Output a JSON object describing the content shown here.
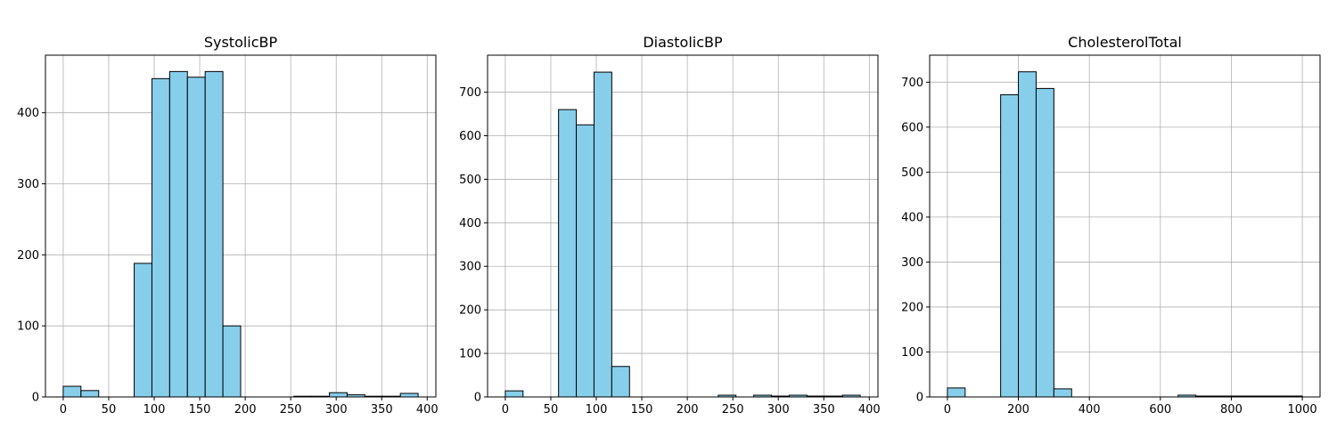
{
  "chart_data": [
    {
      "type": "bar",
      "title": "SystolicBP",
      "xlabel": "",
      "ylabel": "",
      "xlim": [
        -19.5,
        409.5
      ],
      "ylim": [
        0,
        481
      ],
      "xticks": [
        0,
        50,
        100,
        150,
        200,
        250,
        300,
        350,
        400
      ],
      "yticks": [
        0,
        100,
        200,
        300,
        400
      ],
      "grid": true,
      "bin_edges": [
        0,
        19.5,
        39,
        58.5,
        78,
        97.5,
        117,
        136.5,
        156,
        175.5,
        195,
        214.5,
        234,
        253.5,
        273,
        292.5,
        312,
        331.5,
        351,
        370.5,
        390
      ],
      "values": [
        15,
        9,
        0,
        0,
        188,
        448,
        458,
        450,
        458,
        100,
        0,
        0,
        0,
        1,
        1,
        6,
        3,
        1,
        1,
        5
      ],
      "bar_color": "#87ceeb",
      "edge_color": "#000000"
    },
    {
      "type": "bar",
      "title": "DiastolicBP",
      "xlabel": "",
      "ylabel": "",
      "xlim": [
        -19.5,
        409.5
      ],
      "ylim": [
        0,
        785
      ],
      "xticks": [
        0,
        50,
        100,
        150,
        200,
        250,
        300,
        350,
        400
      ],
      "yticks": [
        0,
        100,
        200,
        300,
        400,
        500,
        600,
        700
      ],
      "grid": true,
      "bin_edges": [
        0,
        19.5,
        39,
        58.5,
        78,
        97.5,
        117,
        136.5,
        156,
        175.5,
        195,
        214.5,
        234,
        253.5,
        273,
        292.5,
        312,
        331.5,
        351,
        370.5,
        390
      ],
      "values": [
        14,
        0,
        0,
        660,
        625,
        746,
        70,
        0,
        0,
        0,
        0,
        0,
        4,
        0,
        4,
        2,
        4,
        2,
        2,
        4
      ],
      "bar_color": "#87ceeb",
      "edge_color": "#000000"
    },
    {
      "type": "bar",
      "title": "CholesterolTotal",
      "xlabel": "",
      "ylabel": "",
      "xlim": [
        -50,
        1050
      ],
      "ylim": [
        0,
        760
      ],
      "xticks": [
        0,
        200,
        400,
        600,
        800,
        1000
      ],
      "yticks": [
        0,
        100,
        200,
        300,
        400,
        500,
        600,
        700
      ],
      "grid": true,
      "bin_edges": [
        0,
        50,
        100,
        150,
        200,
        250,
        300,
        350,
        400,
        450,
        500,
        550,
        600,
        650,
        700,
        750,
        800,
        850,
        900,
        950,
        1000
      ],
      "values": [
        20,
        0,
        0,
        672,
        723,
        686,
        18,
        0,
        0,
        0,
        0,
        0,
        0,
        4,
        2,
        2,
        2,
        2,
        2,
        2
      ],
      "bar_color": "#87ceeb",
      "edge_color": "#000000"
    }
  ]
}
